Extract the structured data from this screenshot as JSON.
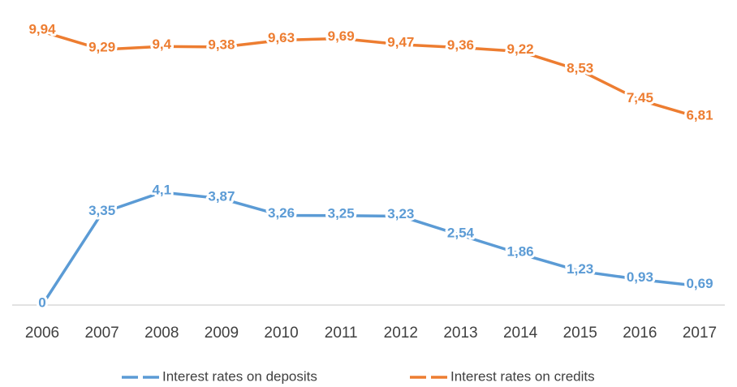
{
  "chart_data": {
    "type": "line",
    "categories": [
      "2006",
      "2007",
      "2008",
      "2009",
      "2010",
      "2011",
      "2012",
      "2013",
      "2014",
      "2015",
      "2016",
      "2017"
    ],
    "series": [
      {
        "name": "Interest rates on deposits",
        "color": "#5b9bd5",
        "values": [
          0,
          3.35,
          4.1,
          3.87,
          3.26,
          3.25,
          3.23,
          2.54,
          1.86,
          1.23,
          0.93,
          0.69
        ],
        "value_labels": [
          "0",
          "3,35",
          "4,1",
          "3,87",
          "3,26",
          "3,25",
          "3,23",
          "2,54",
          "1,86",
          "1,23",
          "0,93",
          "0,69"
        ]
      },
      {
        "name": "Interest rates on credits",
        "color": "#ed7d31",
        "values": [
          9.94,
          9.29,
          9.4,
          9.38,
          9.63,
          9.69,
          9.47,
          9.36,
          9.22,
          8.53,
          7.45,
          6.81
        ],
        "value_labels": [
          "9,94",
          "9,29",
          "9,4",
          "9,38",
          "9,63",
          "9,69",
          "9,47",
          "9,36",
          "9,22",
          "8,53",
          "7,45",
          "6,81"
        ]
      }
    ],
    "ylim": [
      0,
      10.5
    ],
    "legend": "bottom"
  }
}
